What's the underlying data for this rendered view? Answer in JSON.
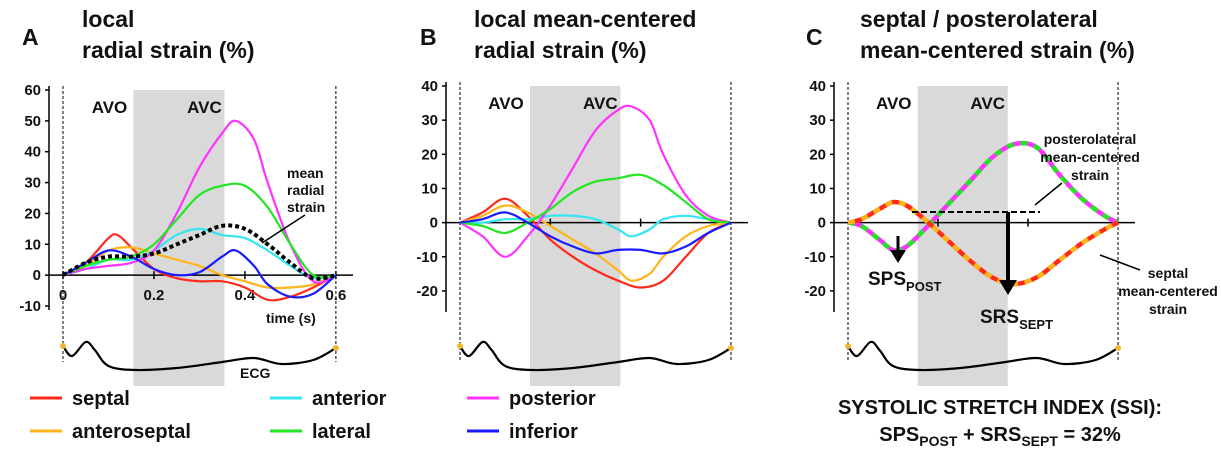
{
  "figure": {
    "legend": [
      {
        "label": "septal",
        "color": "#ff2a1a"
      },
      {
        "label": "anterior",
        "color": "#33e6f2"
      },
      {
        "label": "posterior",
        "color": "#ff33ff"
      },
      {
        "label": "anteroseptal",
        "color": "#ffb51a"
      },
      {
        "label": "lateral",
        "color": "#22e622"
      },
      {
        "label": "inferior",
        "color": "#1a1aff"
      }
    ],
    "ssi_title": "SYSTOLIC STRETCH INDEX (SSI):",
    "ssi_formula": {
      "sps": "SPS",
      "post_sub": "POST",
      "plus": " + ",
      "srs": "SRS",
      "sept_sub": "SEPT",
      "rest": " = 32%"
    }
  },
  "chart_data": [
    {
      "panel": "A",
      "type": "line",
      "title": [
        "local",
        "radial strain (%)"
      ],
      "xlabel": "time (s)",
      "xticks": [
        "0",
        "0.2",
        "0.4",
        "0.6"
      ],
      "yticks": [
        "-10",
        "0",
        "10",
        "20",
        "30",
        "40",
        "50",
        "60"
      ],
      "xlim": [
        0,
        0.62
      ],
      "ylim": [
        -10,
        60
      ],
      "events": [
        {
          "label": "AVO",
          "t": 0.155
        },
        {
          "label": "AVC",
          "t": 0.355
        }
      ],
      "annotation": [
        "mean",
        "radial",
        "strain"
      ],
      "ecg_label": "ECG",
      "series": [
        {
          "name": "septal",
          "color": "#ff2a1a",
          "x": [
            0,
            0.05,
            0.1,
            0.12,
            0.15,
            0.2,
            0.25,
            0.3,
            0.35,
            0.4,
            0.45,
            0.5,
            0.55,
            0.6
          ],
          "y": [
            0,
            4,
            12,
            13,
            9,
            2,
            -1,
            -2,
            -2,
            -4,
            -8,
            -7,
            -4,
            0
          ]
        },
        {
          "name": "anteroseptal",
          "color": "#ffb51a",
          "x": [
            0,
            0.05,
            0.1,
            0.15,
            0.2,
            0.25,
            0.3,
            0.35,
            0.4,
            0.45,
            0.5,
            0.55,
            0.6
          ],
          "y": [
            0,
            3,
            8,
            9,
            7,
            5,
            3,
            0,
            -2,
            -4,
            -4,
            -3,
            0
          ]
        },
        {
          "name": "anterior",
          "color": "#33e6f2",
          "x": [
            0,
            0.05,
            0.1,
            0.15,
            0.2,
            0.25,
            0.3,
            0.35,
            0.4,
            0.45,
            0.5,
            0.55,
            0.6
          ],
          "y": [
            0,
            2,
            5,
            5,
            8,
            13,
            15,
            13,
            12,
            8,
            3,
            -1,
            0
          ]
        },
        {
          "name": "posterior",
          "color": "#ff33ff",
          "x": [
            0,
            0.05,
            0.1,
            0.15,
            0.2,
            0.25,
            0.3,
            0.35,
            0.38,
            0.42,
            0.45,
            0.5,
            0.55,
            0.6
          ],
          "y": [
            0,
            2,
            3,
            4,
            8,
            20,
            35,
            46,
            50,
            44,
            30,
            10,
            -2,
            0
          ]
        },
        {
          "name": "lateral",
          "color": "#22e622",
          "x": [
            0,
            0.05,
            0.1,
            0.15,
            0.2,
            0.25,
            0.3,
            0.35,
            0.4,
            0.45,
            0.5,
            0.55,
            0.6
          ],
          "y": [
            0,
            3,
            5,
            6,
            10,
            18,
            26,
            29,
            29,
            22,
            10,
            0,
            0
          ]
        },
        {
          "name": "inferior",
          "color": "#1a1aff",
          "x": [
            0,
            0.05,
            0.1,
            0.15,
            0.2,
            0.25,
            0.3,
            0.35,
            0.38,
            0.42,
            0.45,
            0.5,
            0.55,
            0.6
          ],
          "y": [
            0,
            4,
            8,
            6,
            2,
            0,
            1,
            6,
            8,
            3,
            -3,
            -7,
            -6,
            0
          ]
        },
        {
          "name": "mean radial strain",
          "color": "#000000",
          "dashed": true,
          "x": [
            0,
            0.05,
            0.1,
            0.15,
            0.2,
            0.25,
            0.3,
            0.35,
            0.4,
            0.45,
            0.5,
            0.55,
            0.6
          ],
          "y": [
            0,
            4,
            6,
            6,
            7,
            10,
            13,
            16,
            15,
            10,
            4,
            -1,
            0
          ]
        }
      ]
    },
    {
      "panel": "B",
      "type": "line",
      "title": [
        "local mean-centered",
        "radial strain (%)"
      ],
      "yticks": [
        "-20",
        "-10",
        "0",
        "10",
        "20",
        "30",
        "40"
      ],
      "xlim": [
        0,
        0.62
      ],
      "ylim": [
        -25,
        40
      ],
      "events": [
        {
          "label": "AVO",
          "t": 0.155
        },
        {
          "label": "AVC",
          "t": 0.355
        }
      ],
      "series": [
        {
          "name": "septal",
          "color": "#ff2a1a",
          "x": [
            0,
            0.05,
            0.1,
            0.15,
            0.2,
            0.25,
            0.3,
            0.35,
            0.4,
            0.45,
            0.5,
            0.55,
            0.6
          ],
          "y": [
            0,
            3,
            7,
            2,
            -5,
            -10,
            -14,
            -17,
            -19,
            -17,
            -10,
            -3,
            0
          ]
        },
        {
          "name": "anteroseptal",
          "color": "#ffb51a",
          "x": [
            0,
            0.05,
            0.1,
            0.15,
            0.2,
            0.25,
            0.3,
            0.35,
            0.38,
            0.42,
            0.45,
            0.5,
            0.55,
            0.6
          ],
          "y": [
            0,
            2,
            5,
            3,
            -1,
            -5,
            -9,
            -14,
            -17,
            -15,
            -10,
            -4,
            -1,
            0
          ]
        },
        {
          "name": "anterior",
          "color": "#33e6f2",
          "x": [
            0,
            0.05,
            0.1,
            0.15,
            0.2,
            0.25,
            0.3,
            0.35,
            0.38,
            0.42,
            0.45,
            0.5,
            0.55,
            0.6
          ],
          "y": [
            0,
            0,
            1,
            1,
            2,
            2,
            1,
            -2,
            -4,
            -2,
            1,
            2,
            1,
            0
          ]
        },
        {
          "name": "posterior",
          "color": "#ff33ff",
          "x": [
            0,
            0.05,
            0.1,
            0.15,
            0.2,
            0.25,
            0.3,
            0.35,
            0.38,
            0.42,
            0.45,
            0.5,
            0.55,
            0.6
          ],
          "y": [
            0,
            -4,
            -10,
            -4,
            5,
            16,
            27,
            33,
            34,
            30,
            20,
            8,
            2,
            0
          ]
        },
        {
          "name": "lateral",
          "color": "#22e622",
          "x": [
            0,
            0.05,
            0.1,
            0.15,
            0.2,
            0.25,
            0.3,
            0.35,
            0.4,
            0.45,
            0.5,
            0.55,
            0.6
          ],
          "y": [
            0,
            -1,
            -3,
            0,
            4,
            9,
            12,
            13,
            14,
            11,
            6,
            1,
            0
          ]
        },
        {
          "name": "inferior",
          "color": "#1a1aff",
          "x": [
            0,
            0.05,
            0.1,
            0.15,
            0.2,
            0.25,
            0.3,
            0.35,
            0.4,
            0.45,
            0.5,
            0.55,
            0.6
          ],
          "y": [
            0,
            1,
            3,
            0,
            -4,
            -7,
            -9,
            -8,
            -8,
            -9,
            -7,
            -3,
            0
          ]
        }
      ]
    },
    {
      "panel": "C",
      "type": "line",
      "title": [
        "septal / posterolateral",
        "mean-centered strain (%)"
      ],
      "yticks": [
        "-20",
        "-10",
        "0",
        "10",
        "20",
        "30",
        "40"
      ],
      "xlim": [
        0,
        0.62
      ],
      "ylim": [
        -25,
        40
      ],
      "events": [
        {
          "label": "AVO",
          "t": 0.155
        },
        {
          "label": "AVC",
          "t": 0.355
        }
      ],
      "annotations": {
        "posterolateral": [
          "posterolateral",
          "mean-centered",
          "strain"
        ],
        "septal": [
          "septal",
          "mean-centered",
          "strain"
        ],
        "sps": "SPS",
        "sps_sub": "POST",
        "srs": "SRS",
        "srs_sub": "SEPT"
      },
      "series": [
        {
          "name": "posterolateral mean-centered strain",
          "colors": [
            "#ff33ff",
            "#22e622"
          ],
          "x": [
            0,
            0.03,
            0.07,
            0.1,
            0.13,
            0.17,
            0.22,
            0.27,
            0.32,
            0.37,
            0.42,
            0.47,
            0.52,
            0.57,
            0.6
          ],
          "y": [
            0,
            -1,
            -5,
            -8,
            -7,
            -2,
            5,
            12,
            19,
            23,
            22,
            14,
            7,
            2,
            0
          ]
        },
        {
          "name": "septal mean-centered strain",
          "colors": [
            "#ff2a1a",
            "#ffb51a"
          ],
          "x": [
            0,
            0.03,
            0.07,
            0.1,
            0.13,
            0.17,
            0.22,
            0.27,
            0.32,
            0.37,
            0.42,
            0.47,
            0.52,
            0.57,
            0.6
          ],
          "y": [
            0,
            1,
            4,
            6,
            5,
            1,
            -5,
            -11,
            -16,
            -18,
            -16,
            -11,
            -6,
            -2,
            0
          ]
        }
      ]
    }
  ]
}
